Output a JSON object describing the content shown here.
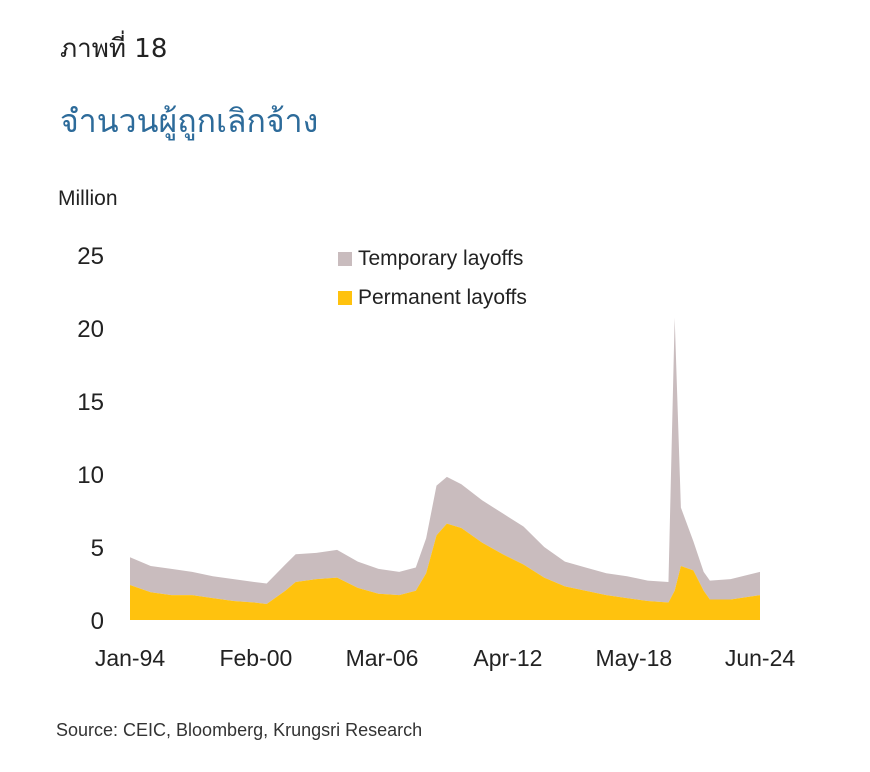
{
  "figure_label": "ภาพที่ 18",
  "title": "จำนวนผู้ถูกเลิกจ้าง",
  "source": "Source: CEIC, Bloomberg, Krungsri Research",
  "chart_data": {
    "type": "area",
    "title": "จำนวนผู้ถูกเลิกจ้าง",
    "ylabel": "Million",
    "xlabel": "",
    "ylim": [
      0,
      25
    ],
    "yticks": [
      0,
      5,
      10,
      15,
      20,
      25
    ],
    "xtick_labels": [
      "Jan-94",
      "Feb-00",
      "Mar-06",
      "Apr-12",
      "May-18",
      "Jun-24"
    ],
    "xtick_years": [
      1994.0,
      2000.08,
      2006.17,
      2012.25,
      2018.33,
      2024.42
    ],
    "grid": false,
    "stacked": true,
    "legend_position": "top-center",
    "series": [
      {
        "name": "Permanent layoffs",
        "color": "#FFC20E",
        "points": [
          [
            1994.0,
            2.4
          ],
          [
            1995.0,
            1.9
          ],
          [
            1996.0,
            1.7
          ],
          [
            1997.0,
            1.7
          ],
          [
            1998.0,
            1.5
          ],
          [
            1999.0,
            1.3
          ],
          [
            2000.0,
            1.2
          ],
          [
            2000.6,
            1.1
          ],
          [
            2001.5,
            2.0
          ],
          [
            2002.0,
            2.6
          ],
          [
            2003.0,
            2.8
          ],
          [
            2004.0,
            2.9
          ],
          [
            2005.0,
            2.2
          ],
          [
            2006.0,
            1.8
          ],
          [
            2007.0,
            1.7
          ],
          [
            2007.8,
            2.0
          ],
          [
            2008.3,
            3.2
          ],
          [
            2008.8,
            5.8
          ],
          [
            2009.3,
            6.6
          ],
          [
            2010.0,
            6.3
          ],
          [
            2011.0,
            5.3
          ],
          [
            2012.0,
            4.5
          ],
          [
            2013.0,
            3.8
          ],
          [
            2014.0,
            2.9
          ],
          [
            2015.0,
            2.3
          ],
          [
            2016.0,
            2.0
          ],
          [
            2017.0,
            1.7
          ],
          [
            2018.0,
            1.5
          ],
          [
            2019.0,
            1.3
          ],
          [
            2020.0,
            1.2
          ],
          [
            2020.3,
            2.0
          ],
          [
            2020.6,
            3.7
          ],
          [
            2021.2,
            3.4
          ],
          [
            2021.7,
            2.0
          ],
          [
            2022.0,
            1.4
          ],
          [
            2023.0,
            1.4
          ],
          [
            2024.42,
            1.7
          ]
        ]
      },
      {
        "name": "Temporary layoffs",
        "color": "#C9BCBE",
        "points": [
          [
            1994.0,
            1.9
          ],
          [
            1995.0,
            1.8
          ],
          [
            1996.0,
            1.8
          ],
          [
            1997.0,
            1.6
          ],
          [
            1998.0,
            1.5
          ],
          [
            1999.0,
            1.5
          ],
          [
            2000.0,
            1.4
          ],
          [
            2000.6,
            1.4
          ],
          [
            2001.5,
            1.8
          ],
          [
            2002.0,
            1.9
          ],
          [
            2003.0,
            1.8
          ],
          [
            2004.0,
            1.9
          ],
          [
            2005.0,
            1.8
          ],
          [
            2006.0,
            1.7
          ],
          [
            2007.0,
            1.6
          ],
          [
            2007.8,
            1.6
          ],
          [
            2008.3,
            2.4
          ],
          [
            2008.8,
            3.4
          ],
          [
            2009.3,
            3.2
          ],
          [
            2010.0,
            3.0
          ],
          [
            2011.0,
            2.9
          ],
          [
            2012.0,
            2.8
          ],
          [
            2013.0,
            2.6
          ],
          [
            2014.0,
            2.1
          ],
          [
            2015.0,
            1.7
          ],
          [
            2016.0,
            1.6
          ],
          [
            2017.0,
            1.5
          ],
          [
            2018.0,
            1.5
          ],
          [
            2019.0,
            1.4
          ],
          [
            2020.0,
            1.4
          ],
          [
            2020.3,
            18.7
          ],
          [
            2020.6,
            4.0
          ],
          [
            2021.2,
            2.0
          ],
          [
            2021.7,
            1.3
          ],
          [
            2022.0,
            1.3
          ],
          [
            2023.0,
            1.4
          ],
          [
            2024.42,
            1.6
          ]
        ]
      }
    ]
  }
}
